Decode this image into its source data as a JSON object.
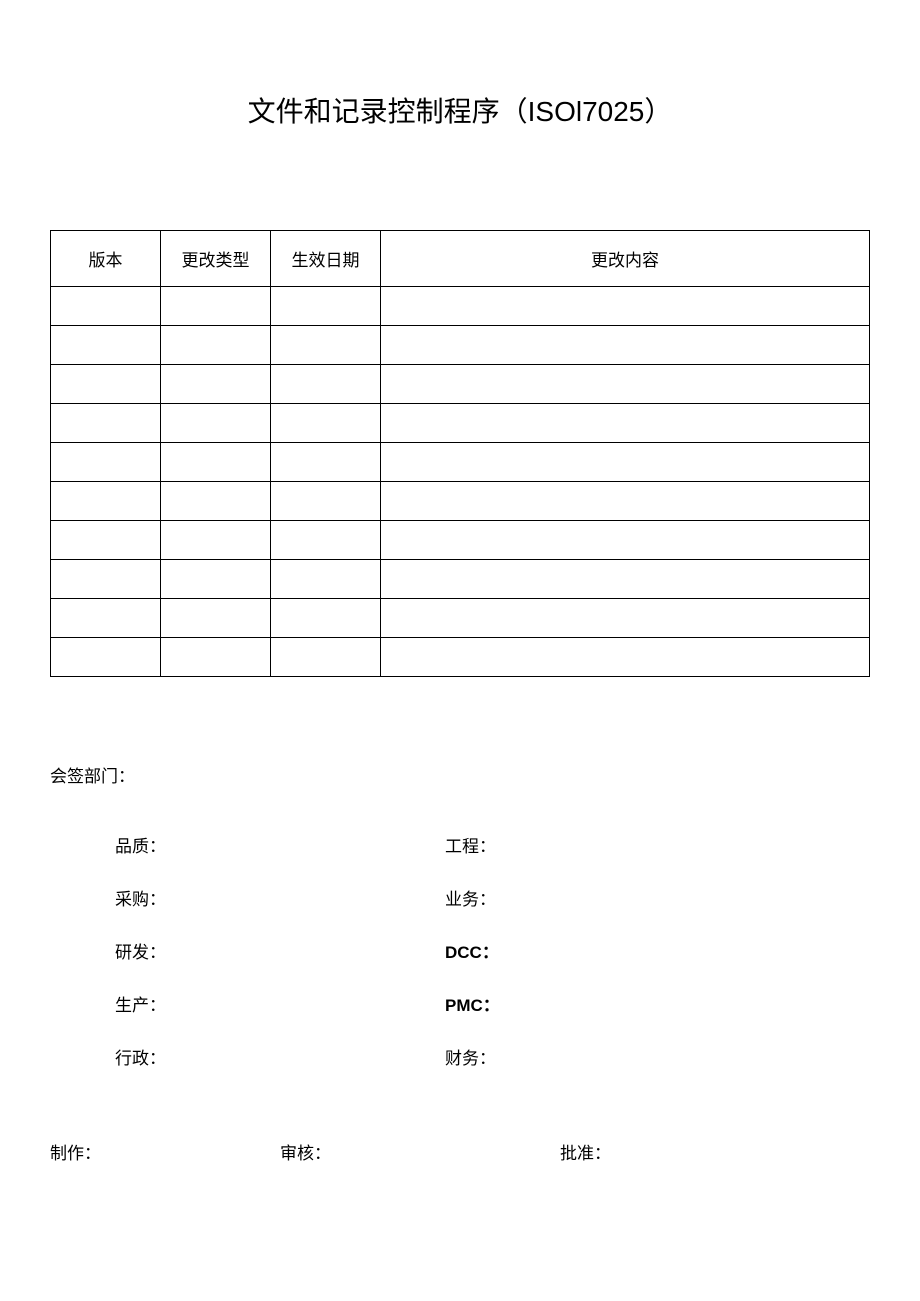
{
  "document": {
    "title": "文件和记录控制程序（ISOl7025）",
    "page_bg": "#ffffff",
    "text_color": "#000000",
    "border_color": "#000000"
  },
  "revision_table": {
    "headers": {
      "version": "版本",
      "change_type": "更改类型",
      "effective_date": "生效日期",
      "change_content": "更改内容"
    },
    "rows": [
      {
        "version": "",
        "change_type": "",
        "effective_date": "",
        "change_content": ""
      },
      {
        "version": "",
        "change_type": "",
        "effective_date": "",
        "change_content": ""
      },
      {
        "version": "",
        "change_type": "",
        "effective_date": "",
        "change_content": ""
      },
      {
        "version": "",
        "change_type": "",
        "effective_date": "",
        "change_content": ""
      },
      {
        "version": "",
        "change_type": "",
        "effective_date": "",
        "change_content": ""
      },
      {
        "version": "",
        "change_type": "",
        "effective_date": "",
        "change_content": ""
      },
      {
        "version": "",
        "change_type": "",
        "effective_date": "",
        "change_content": ""
      },
      {
        "version": "",
        "change_type": "",
        "effective_date": "",
        "change_content": ""
      },
      {
        "version": "",
        "change_type": "",
        "effective_date": "",
        "change_content": ""
      },
      {
        "version": "",
        "change_type": "",
        "effective_date": "",
        "change_content": ""
      }
    ]
  },
  "sign_section": {
    "title": "会签部门：",
    "rows": [
      {
        "left": "品质：",
        "right": "工程："
      },
      {
        "left": "采购：",
        "right": "业务："
      },
      {
        "left": "研发：",
        "right": "DCC：",
        "right_bold": true
      },
      {
        "left": "生产：",
        "right": "PMC：",
        "right_bold": true
      },
      {
        "left": "行政：",
        "right": "财务："
      }
    ]
  },
  "approval": {
    "make": "制作：",
    "review": "审核：",
    "approve": "批准："
  }
}
